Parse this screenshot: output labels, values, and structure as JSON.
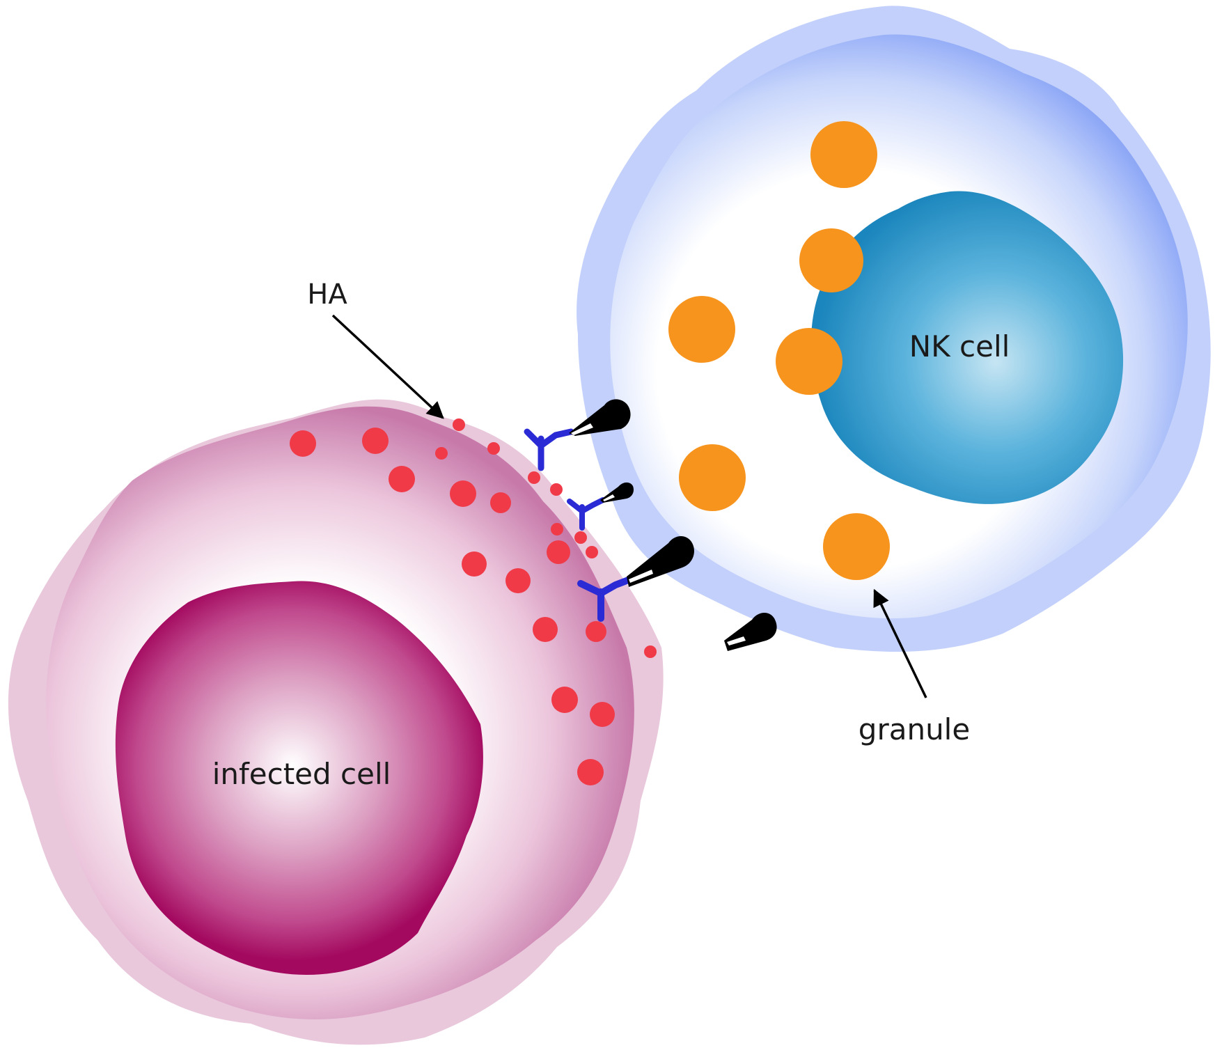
{
  "labels": {
    "ha": "HA",
    "nk_cell": "NK cell",
    "granule": "granule",
    "infected_cell": "infected cell"
  },
  "colors": {
    "infected_outer": "#c77aaa",
    "infected_nucleus": "#a3095f",
    "ha_dot": "#f03a47",
    "nk_outer": "#7f9cf5",
    "nk_nucleus": "#1b86bd",
    "granule": "#f7941d",
    "antibody": "#2b2bd6",
    "receptor": "#000000"
  }
}
